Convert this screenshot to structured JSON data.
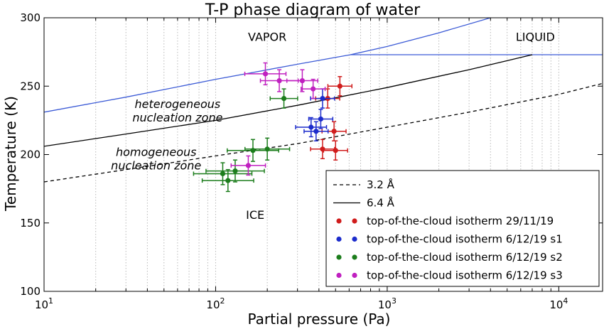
{
  "chart_data": {
    "type": "scatter",
    "title": "T-P phase diagram of water",
    "xlabel": "Partial pressure (Pa)",
    "ylabel": "Temperature (K)",
    "xscale": "log",
    "xlim": [
      10,
      18000
    ],
    "ylim": [
      100,
      300
    ],
    "grid": {
      "x_minor": true,
      "y": false
    },
    "x_ticks": [
      {
        "value": 10,
        "base": "10",
        "exp": "1"
      },
      {
        "value": 100,
        "base": "10",
        "exp": "2"
      },
      {
        "value": 1000,
        "base": "10",
        "exp": "3"
      },
      {
        "value": 10000,
        "base": "10",
        "exp": "4"
      }
    ],
    "y_ticks": [
      100,
      150,
      200,
      250,
      300
    ],
    "region_labels": [
      {
        "text": "VAPOR",
        "x": 200,
        "y": 283
      },
      {
        "text": "LIQUID",
        "x": 7300,
        "y": 283
      },
      {
        "text": "ICE",
        "x": 170,
        "y": 153
      }
    ],
    "zone_labels": [
      {
        "lines": [
          "heterogeneous",
          "nucleation zone"
        ],
        "x": 60,
        "y": 234
      },
      {
        "lines": [
          "homogeneous",
          "nucleation zone"
        ],
        "x": 45,
        "y": 199
      }
    ],
    "curves": [
      {
        "name": "saturation",
        "style": "solid",
        "color": "#3c5bd6",
        "x": [
          10,
          30,
          100,
          300,
          611,
          1000,
          2000,
          4000
        ],
        "y": [
          231,
          242,
          255,
          266,
          273,
          279,
          289,
          300
        ]
      },
      {
        "name": "liquid-boundary",
        "style": "solid",
        "color": "#3c5bd6",
        "x": [
          611,
          18000
        ],
        "y": [
          273,
          273
        ]
      },
      {
        "name": "3.2 Å",
        "style": "dashed",
        "color": "#000000",
        "x": [
          10,
          30,
          100,
          300,
          1000,
          3000,
          10000,
          18000
        ],
        "y": [
          180,
          189,
          199,
          208,
          220,
          231,
          244,
          252
        ]
      },
      {
        "name": "6.4 Å",
        "style": "solid",
        "color": "#000000",
        "x": [
          10,
          30,
          100,
          300,
          1000,
          3000,
          7000
        ],
        "y": [
          206,
          215,
          225,
          236,
          249,
          262,
          273
        ]
      }
    ],
    "series": [
      {
        "name": "top-of-the-cloud isotherm 29/11/19",
        "color": "#d01c1c",
        "points": [
          {
            "x": 530,
            "y": 250,
            "xerr": 0.07,
            "yerr": 7
          },
          {
            "x": 450,
            "y": 241,
            "xerr": 0.07,
            "yerr": 7
          },
          {
            "x": 490,
            "y": 217,
            "xerr": 0.07,
            "yerr": 7
          },
          {
            "x": 420,
            "y": 204,
            "xerr": 0.07,
            "yerr": 7
          },
          {
            "x": 500,
            "y": 203,
            "xerr": 0.07,
            "yerr": 7
          }
        ]
      },
      {
        "name": "top-of-the-cloud isotherm 6/12/19 s1",
        "color": "#1c2ccc",
        "points": [
          {
            "x": 420,
            "y": 241,
            "xerr": 0.07,
            "yerr": 7
          },
          {
            "x": 410,
            "y": 226,
            "xerr": 0.07,
            "yerr": 7
          },
          {
            "x": 360,
            "y": 220,
            "xerr": 0.09,
            "yerr": 7
          },
          {
            "x": 385,
            "y": 217,
            "xerr": 0.07,
            "yerr": 7
          }
        ]
      },
      {
        "name": "top-of-the-cloud isotherm 6/12/19 s2",
        "color": "#1c7d1c",
        "points": [
          {
            "x": 250,
            "y": 241,
            "xerr": 0.08,
            "yerr": 7
          },
          {
            "x": 200,
            "y": 204,
            "xerr": 0.13,
            "yerr": 8
          },
          {
            "x": 165,
            "y": 203,
            "xerr": 0.15,
            "yerr": 8
          },
          {
            "x": 130,
            "y": 188,
            "xerr": 0.17,
            "yerr": 8
          },
          {
            "x": 110,
            "y": 186,
            "xerr": 0.17,
            "yerr": 8
          },
          {
            "x": 118,
            "y": 181,
            "xerr": 0.15,
            "yerr": 8
          }
        ]
      },
      {
        "name": "top-of-the-cloud isotherm 6/12/19 s3",
        "color": "#c020c0",
        "points": [
          {
            "x": 195,
            "y": 259,
            "xerr": 0.12,
            "yerr": 8
          },
          {
            "x": 235,
            "y": 254,
            "xerr": 0.11,
            "yerr": 8
          },
          {
            "x": 320,
            "y": 254,
            "xerr": 0.09,
            "yerr": 8
          },
          {
            "x": 370,
            "y": 248,
            "xerr": 0.07,
            "yerr": 7
          },
          {
            "x": 155,
            "y": 192,
            "xerr": 0.1,
            "yerr": 7
          }
        ]
      }
    ],
    "legend": {
      "placement": "lower-right",
      "entries": [
        {
          "label": "3.2 Å",
          "marker": "dashed",
          "color": "#000000"
        },
        {
          "label": "6.4 Å",
          "marker": "solid",
          "color": "#000000"
        },
        {
          "label": "top-of-the-cloud isotherm 29/11/19",
          "marker": "dots",
          "color": "#d01c1c"
        },
        {
          "label": "top-of-the-cloud isotherm 6/12/19 s1",
          "marker": "dots",
          "color": "#1c2ccc"
        },
        {
          "label": "top-of-the-cloud isotherm 6/12/19 s2",
          "marker": "dots",
          "color": "#1c7d1c"
        },
        {
          "label": "top-of-the-cloud isotherm 6/12/19 s3",
          "marker": "dots",
          "color": "#c020c0"
        }
      ]
    }
  }
}
